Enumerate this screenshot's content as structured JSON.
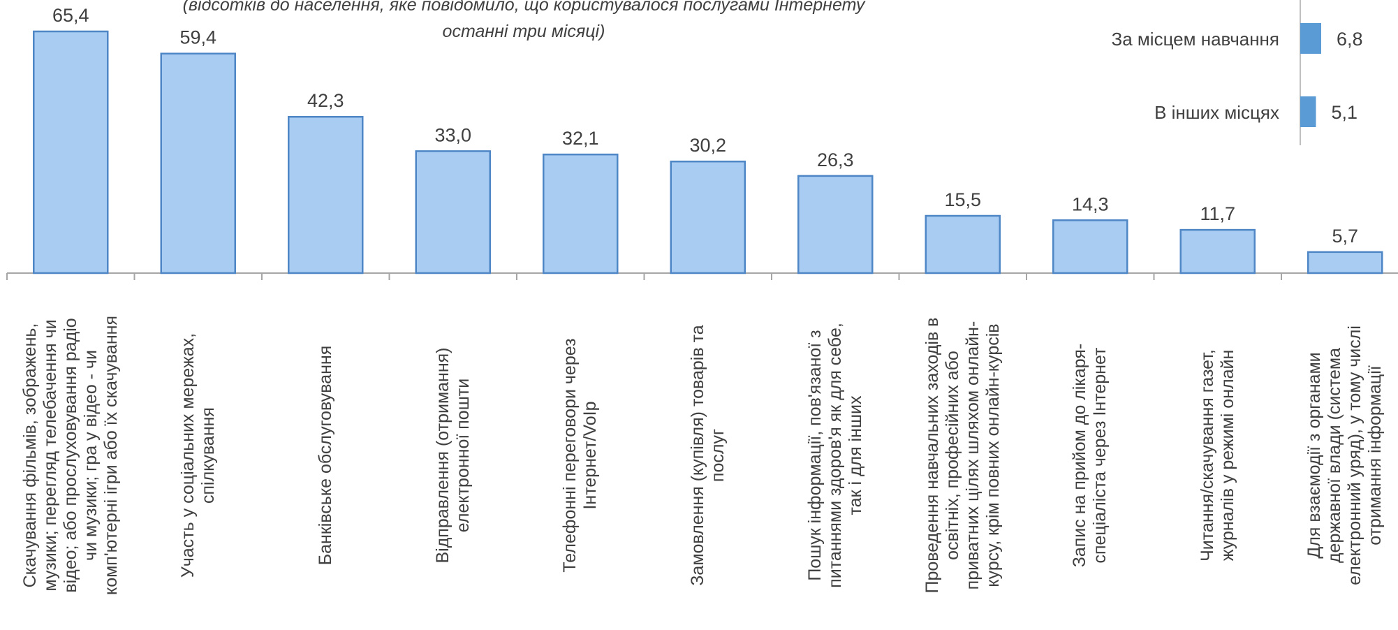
{
  "subtitle_lines": [
    "(відсотків до населення, яке повідомило, що користувалося послугами Інтернету",
    "останні три місяці)"
  ],
  "chart_data": [
    {
      "type": "bar",
      "categories": [
        [
          "Скачування фільмів, зображень,",
          "музики; перегляд телебачення чи",
          "відео; або прослуховування радіо",
          "чи музики; гра у відео - чи",
          "комп'ютерні ігри або їх скачування"
        ],
        [
          "Участь у соціальних мережах,",
          "спілкування"
        ],
        [
          "Банківське обслуговування"
        ],
        [
          "Відправлення (отримання)",
          "електронної пошти"
        ],
        [
          "Телефонні переговори через",
          "Інтернет/VoIp"
        ],
        [
          "Замовлення (купівля) товарів та",
          "послуг"
        ],
        [
          "Пошук інформації, пов'язаної з",
          "питаннями здоров'я як для себе,",
          "так і для інших"
        ],
        [
          "Проведення навчальних заходів в",
          "освітніх, професійних або",
          "приватних цілях шляхом онлайн-",
          "курсу, крім повних онлайн-курсів"
        ],
        [
          "Запис на прийом до лікаря-",
          "спеціаліста через Інтернет"
        ],
        [
          "Читання/скачування газет,",
          "журналів у режимі онлайн"
        ],
        [
          "Для взаємодії з органами",
          "державної влади (система",
          "електронний уряд),  у тому числі",
          "отримання інформації"
        ]
      ],
      "values": [
        65.4,
        59.4,
        42.3,
        33.0,
        32.1,
        30.2,
        26.3,
        15.5,
        14.3,
        11.7,
        5.7
      ],
      "value_labels": [
        "65,4",
        "59,4",
        "42,3",
        "33,0",
        "32,1",
        "30,2",
        "26,3",
        "15,5",
        "14,3",
        "11,7",
        "5,7"
      ],
      "ylim": [
        0,
        70
      ],
      "grid": false,
      "colors": {
        "fill": "#A8CCF2",
        "stroke": "#4F86C6",
        "axis": "#A6A6A6"
      }
    },
    {
      "type": "bar",
      "orientation": "horizontal",
      "legend_placement": "top-right",
      "categories": [
        "За місцем навчання",
        "В інших місцях"
      ],
      "values": [
        6.8,
        5.1
      ],
      "value_labels": [
        "6,8",
        "5,1"
      ],
      "colors": {
        "fill": "#5B9BD5",
        "axis": "#BFBFBF"
      }
    }
  ]
}
